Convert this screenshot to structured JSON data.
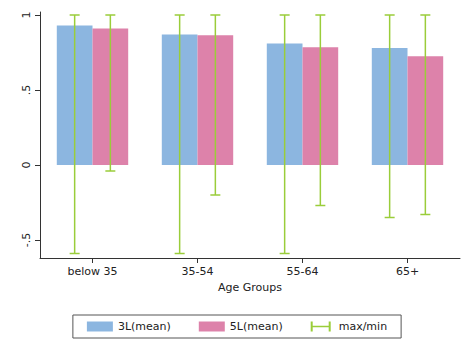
{
  "chart_data": {
    "type": "bar",
    "x_label": "Age Groups",
    "categories": [
      "below 35",
      "35-54",
      "55-64",
      "65+"
    ],
    "series": [
      {
        "name": "3L(mean)",
        "color": "#8cb6e0",
        "values": [
          0.93,
          0.87,
          0.81,
          0.78
        ],
        "min": [
          -0.59,
          -0.59,
          -0.59,
          -0.35
        ],
        "max": [
          1,
          1,
          1,
          1
        ]
      },
      {
        "name": "5L(mean)",
        "color": "#dd82aa",
        "values": [
          0.91,
          0.865,
          0.785,
          0.725
        ],
        "min": [
          -0.04,
          -0.2,
          -0.27,
          -0.33
        ],
        "max": [
          1,
          1,
          1,
          1
        ]
      }
    ],
    "error_bars": {
      "name": "max/min",
      "color": "#9acd3a"
    },
    "ylim": [
      -0.62,
      1.02
    ],
    "yticks": [
      {
        "value": -0.5,
        "label": "-.5"
      },
      0,
      {
        "value": 0.5,
        "label": ".5"
      },
      1
    ],
    "grid": false,
    "legend": "bottom"
  }
}
